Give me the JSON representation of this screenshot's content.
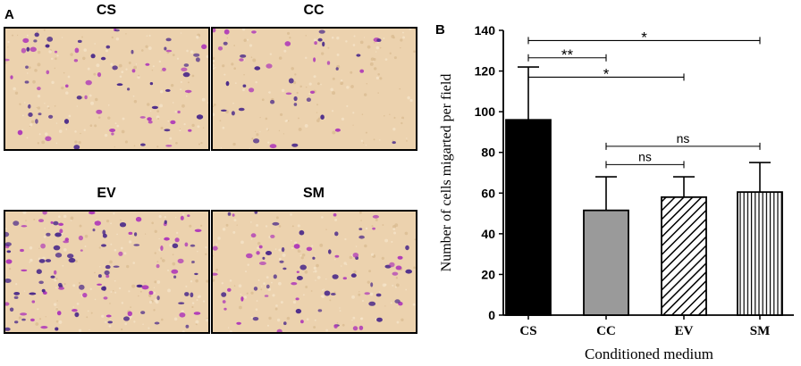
{
  "panel_a": {
    "letter": "A",
    "images": [
      {
        "label": "CS",
        "cells": 70
      },
      {
        "label": "CC",
        "cells": 40
      },
      {
        "label": "EV",
        "cells": 110
      },
      {
        "label": "SM",
        "cells": 75
      }
    ],
    "colors": {
      "background": "#ecd2ae",
      "cell_dark": "#4b2a8a",
      "cell_light": "#b03cb8"
    }
  },
  "chart_data": {
    "panel_letter": "B",
    "type": "bar",
    "categories": [
      "CS",
      "CC",
      "EV",
      "SM"
    ],
    "values": [
      96,
      51.5,
      58,
      60.5
    ],
    "errors": [
      26,
      16.5,
      10,
      14.5
    ],
    "fills": [
      "solid-black",
      "solid-gray",
      "diagonal-hatch",
      "vertical-lines"
    ],
    "xlabel": "Conditioned medium",
    "ylabel": "Number of cells migarted per field",
    "ylim": [
      0,
      140
    ],
    "yticks": [
      0,
      20,
      40,
      60,
      80,
      100,
      120,
      140
    ],
    "grid": false,
    "significance": [
      {
        "from": "CS",
        "to": "SM",
        "label": "*",
        "y": 135
      },
      {
        "from": "CS",
        "to": "EV",
        "label": "*",
        "y": 117
      },
      {
        "from": "CS",
        "to": "CC",
        "label": "**",
        "y": 126.5
      },
      {
        "from": "CC",
        "to": "SM",
        "label": "ns",
        "y": 83
      },
      {
        "from": "CC",
        "to": "EV",
        "label": "ns",
        "y": 74
      }
    ]
  }
}
